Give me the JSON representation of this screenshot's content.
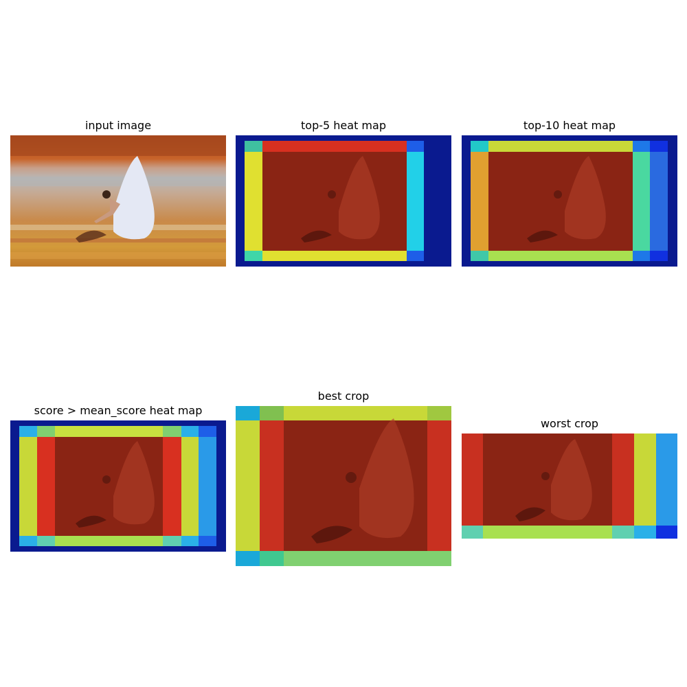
{
  "panels": [
    {
      "title": "input image",
      "kind": "photo"
    },
    {
      "title": "top-5 heat map",
      "kind": "heatmap",
      "palette": "top5"
    },
    {
      "title": "top-10 heat map",
      "kind": "heatmap",
      "palette": "top10"
    },
    {
      "title": "score > mean_score heat map",
      "kind": "heatmap",
      "palette": "mean"
    },
    {
      "title": "best crop",
      "kind": "crop",
      "palette": "best"
    },
    {
      "title": "worst crop",
      "kind": "crop",
      "palette": "worst"
    }
  ],
  "colors": {
    "jet_dark_blue": "#0a1a8f",
    "jet_blue": "#1e5ee8",
    "jet_cyan": "#22d0e8",
    "jet_teal": "#3fd6a8",
    "jet_green": "#7fe07a",
    "jet_yellow": "#e0e030",
    "jet_orange": "#f0a020",
    "jet_red": "#d83020",
    "jet_dark_red": "#7a1a12"
  }
}
